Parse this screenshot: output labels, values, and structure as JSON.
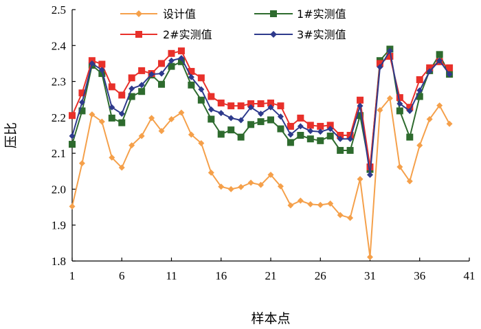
{
  "chart_data": {
    "type": "line",
    "xlabel": "样本点",
    "ylabel": "压比",
    "xlim": [
      1,
      41
    ],
    "ylim": [
      1.8,
      2.5
    ],
    "xticks": [
      1,
      6,
      11,
      16,
      21,
      26,
      31,
      36,
      41
    ],
    "yticks": [
      1.8,
      1.9,
      2.0,
      2.1,
      2.2,
      2.3,
      2.4,
      2.5
    ],
    "xtick_labels": [
      "1",
      "6",
      "11",
      "16",
      "21",
      "26",
      "31",
      "36",
      "41"
    ],
    "ytick_labels": [
      "1.8",
      "1.9",
      "2.0",
      "2.1",
      "2.2",
      "2.3",
      "2.4",
      "2.5"
    ],
    "grid": false,
    "legend_position": "top",
    "x": [
      1,
      2,
      3,
      4,
      5,
      6,
      7,
      8,
      9,
      10,
      11,
      12,
      13,
      14,
      15,
      16,
      17,
      18,
      19,
      20,
      21,
      22,
      23,
      24,
      25,
      26,
      27,
      28,
      29,
      30,
      31,
      32,
      33,
      34,
      35,
      36,
      37,
      38,
      39,
      40
    ],
    "series": [
      {
        "name": "设计值",
        "color": "#f5a04a",
        "marker": "diamond",
        "values": [
          1.952,
          2.072,
          2.208,
          2.188,
          2.088,
          2.06,
          2.122,
          2.148,
          2.198,
          2.162,
          2.195,
          2.213,
          2.152,
          2.128,
          2.046,
          2.007,
          2.0,
          2.006,
          2.018,
          2.012,
          2.04,
          2.008,
          1.955,
          1.968,
          1.958,
          1.956,
          1.96,
          1.928,
          1.92,
          2.028,
          1.811,
          2.22,
          2.253,
          2.062,
          2.022,
          2.122,
          2.195,
          2.233,
          2.182,
          null
        ]
      },
      {
        "name": "1#实测值",
        "color": "#2e6b2e",
        "marker": "square",
        "values": [
          2.125,
          2.218,
          2.345,
          2.322,
          2.198,
          2.185,
          2.258,
          2.272,
          2.318,
          2.292,
          2.342,
          2.355,
          2.29,
          2.248,
          2.195,
          2.153,
          2.165,
          2.145,
          2.18,
          2.188,
          2.193,
          2.168,
          2.13,
          2.15,
          2.14,
          2.135,
          2.148,
          2.108,
          2.108,
          2.205,
          2.055,
          2.358,
          2.39,
          2.218,
          2.145,
          2.258,
          2.33,
          2.375,
          2.32,
          null
        ]
      },
      {
        "name": "2#实测值",
        "color": "#e8302a",
        "marker": "square",
        "values": [
          2.205,
          2.268,
          2.358,
          2.348,
          2.285,
          2.262,
          2.31,
          2.33,
          2.322,
          2.35,
          2.378,
          2.385,
          2.328,
          2.31,
          2.258,
          2.24,
          2.232,
          2.232,
          2.238,
          2.238,
          2.24,
          2.232,
          2.175,
          2.198,
          2.178,
          2.175,
          2.178,
          2.15,
          2.15,
          2.248,
          2.062,
          2.35,
          2.37,
          2.255,
          2.228,
          2.305,
          2.338,
          2.355,
          2.338,
          null
        ]
      },
      {
        "name": "3#实测值",
        "color": "#2e3a8c",
        "marker": "diamond",
        "values": [
          2.148,
          2.242,
          2.35,
          2.332,
          2.228,
          2.21,
          2.28,
          2.29,
          2.32,
          2.322,
          2.358,
          2.365,
          2.312,
          2.278,
          2.222,
          2.212,
          2.198,
          2.192,
          2.228,
          2.21,
          2.228,
          2.202,
          2.152,
          2.175,
          2.162,
          2.16,
          2.168,
          2.14,
          2.14,
          2.232,
          2.04,
          2.34,
          2.385,
          2.238,
          2.218,
          2.275,
          2.328,
          2.358,
          2.32,
          null
        ]
      }
    ]
  }
}
